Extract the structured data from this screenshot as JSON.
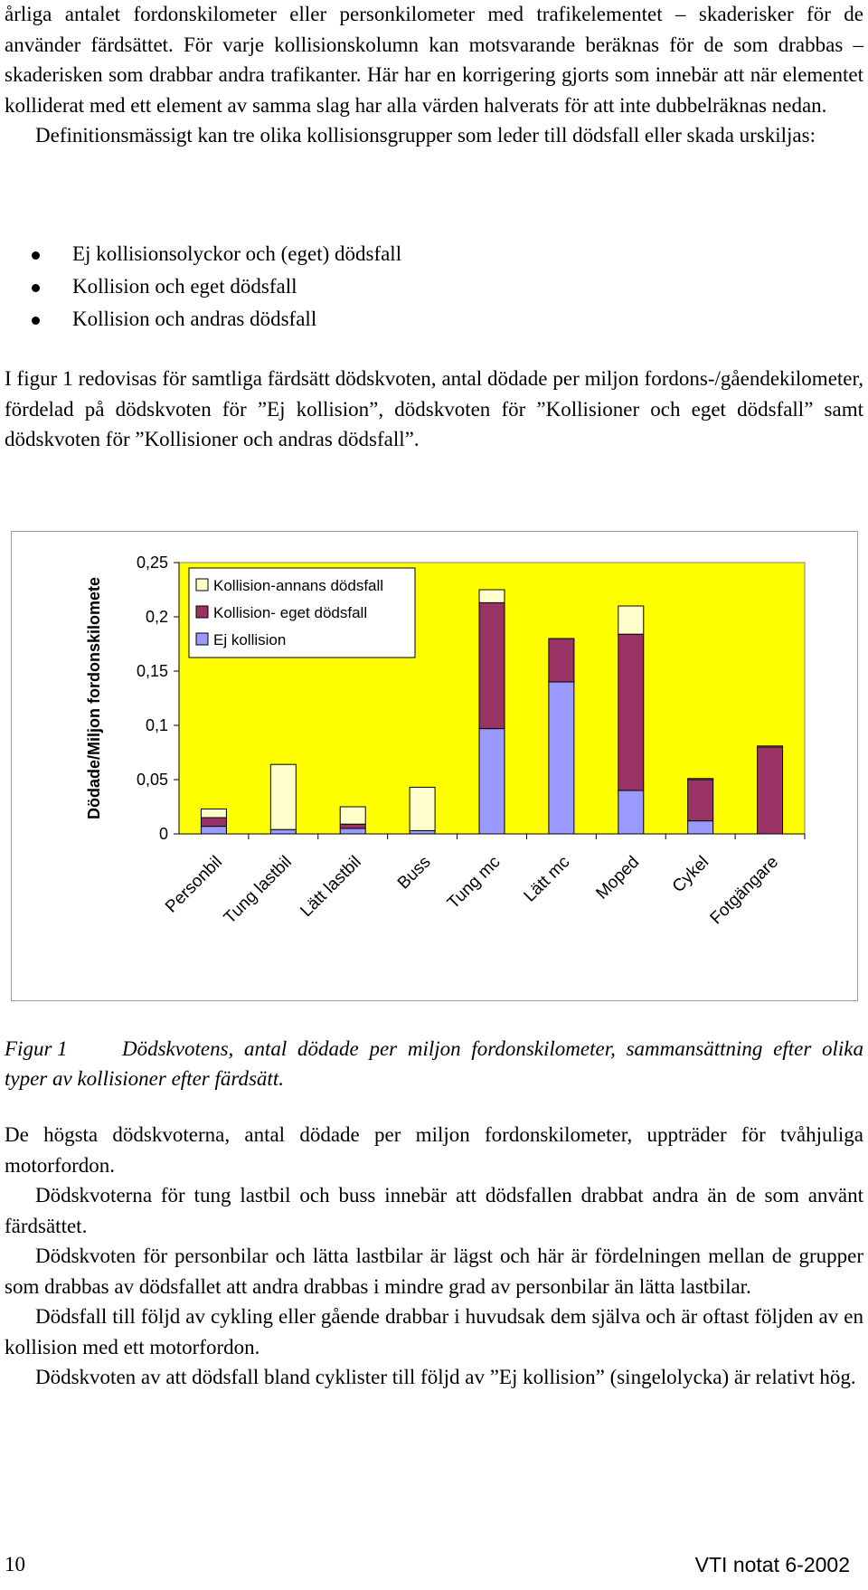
{
  "intro_paragraphs": [
    "årliga antalet fordonskilometer eller personkilometer med trafikelementet – skaderisker för de använder färdsättet. För varje kollisionskolumn kan motsvarande beräknas för de som drabbas – skaderisken som drabbar andra trafikanter. Här har en korrigering gjorts som innebär att när elementet kolliderat med ett element av samma slag har alla värden halverats för att inte dubbelräknas nedan.",
    "Definitionsmässigt kan tre olika kollisionsgrupper som leder till dödsfall eller skada urskiljas:"
  ],
  "bullets": [
    "Ej kollisionsolyckor och (eget) dödsfall",
    "Kollision och eget dödsfall",
    "Kollision och andras dödsfall"
  ],
  "figure_intro": "I figur 1 redovisas för samtliga färdsätt dödskvoten, antal dödade per miljon fordons-/gåendekilometer, fördelad på dödskvoten för ”Ej kollision”, dödskvoten för ”Kollisioner och eget dödsfall” samt dödskvoten för ”Kollisioner och andras dödsfall”.",
  "chart_data": {
    "type": "bar",
    "stacked": true,
    "categories": [
      "Personbil",
      "Tung lastbil",
      "Lätt lastbil",
      "Buss",
      "Tung mc",
      "Lätt mc",
      "Moped",
      "Cykel",
      "Fotgängare"
    ],
    "series": [
      {
        "name": "Ej kollision",
        "color": "#9999ff",
        "values": [
          0.007,
          0.004,
          0.005,
          0.003,
          0.097,
          0.14,
          0.04,
          0.012,
          0.0
        ]
      },
      {
        "name": "Kollision- eget dödsfall",
        "color": "#993366",
        "values": [
          0.008,
          0.0,
          0.004,
          0.0,
          0.116,
          0.04,
          0.144,
          0.038,
          0.08
        ]
      },
      {
        "name": "Kollision-annans dödsfall",
        "color": "#ffffcc",
        "values": [
          0.008,
          0.06,
          0.016,
          0.04,
          0.012,
          0.0,
          0.026,
          0.001,
          0.001
        ]
      }
    ],
    "ylabel": "Dödade/Miljon fordonskilomete",
    "xlabel": "",
    "ylim": [
      0,
      0.25
    ],
    "y_ticks": [
      "0",
      "0,05",
      "0,1",
      "0,15",
      "0,2",
      "0,25"
    ],
    "y_tick_values": [
      0,
      0.05,
      0.1,
      0.15,
      0.2,
      0.25
    ],
    "legend_position": "top-left",
    "plot_background": "#ffff00",
    "grid": false
  },
  "caption": {
    "label": "Figur 1",
    "text": "Dödskvotens, antal dödade per miljon fordonskilometer, sammansättning efter olika typer av kollisioner efter färdsätt."
  },
  "body_paragraphs": [
    "De högsta dödskvoterna, antal dödade per miljon fordonskilometer, uppträder för tvåhjuliga motorfordon.",
    "Dödskvoterna för tung lastbil och buss innebär att dödsfallen drabbat andra än de som använt färdsättet.",
    "Dödskvoten för personbilar och lätta lastbilar är lägst och här är fördelningen mellan de grupper som drabbas av dödsfallet att andra drabbas i mindre grad av personbilar än lätta lastbilar.",
    "Dödsfall till följd av cykling eller gående drabbar i huvudsak dem själva och är oftast följden av en kollision med ett motorfordon.",
    "Dödskvoten av att dödsfall bland cyklister till följd av ”Ej kollision” (singelolycka) är relativt hög."
  ],
  "footer": {
    "page_number": "10",
    "publication": "VTI notat 6-2002"
  }
}
